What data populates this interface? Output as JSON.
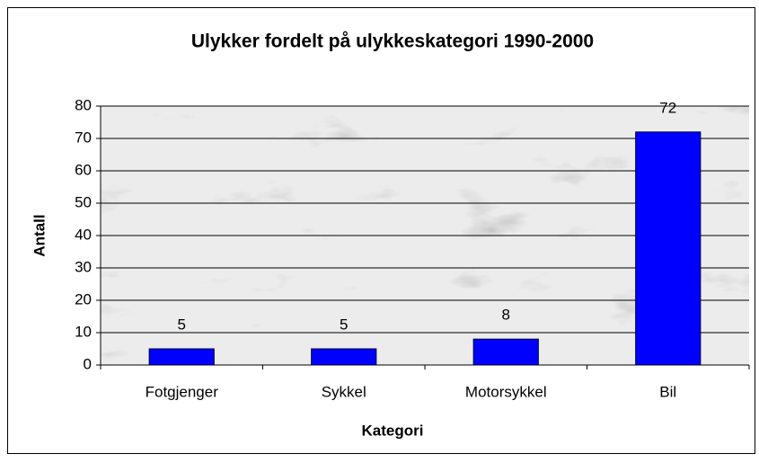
{
  "chart_data": {
    "type": "bar",
    "title": "Ulykker fordelt på ulykkeskategori 1990-2000",
    "x_label": "Kategori",
    "y_label": "Antall",
    "categories": [
      "Fotgjenger",
      "Sykkel",
      "Motorsykkel",
      "Bil"
    ],
    "values": [
      5,
      5,
      8,
      72
    ],
    "color": "#0000ff",
    "ylim": [
      0,
      80
    ],
    "yticks": [
      0,
      10,
      20,
      30,
      40,
      50,
      60,
      70,
      80
    ],
    "grid": true
  }
}
